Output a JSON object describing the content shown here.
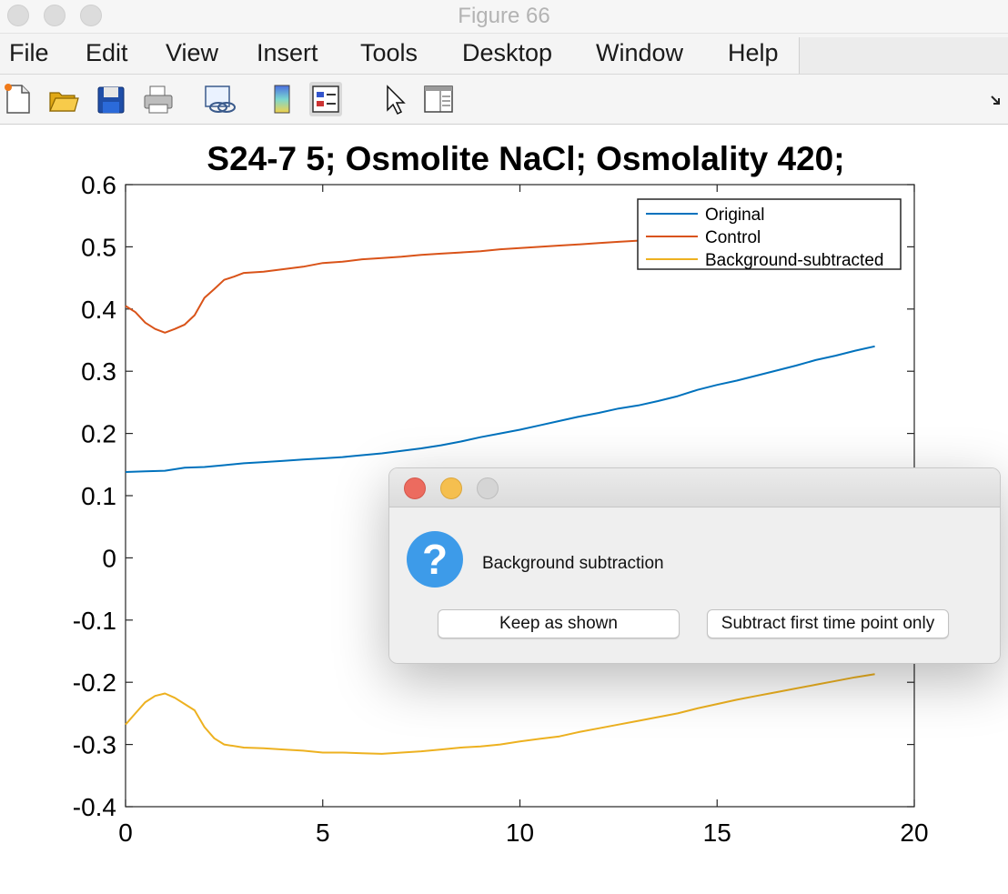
{
  "window": {
    "title": "Figure 66"
  },
  "menu": [
    "File",
    "Edit",
    "View",
    "Insert",
    "Tools",
    "Desktop",
    "Window",
    "Help"
  ],
  "toolbar": [
    "new-figure-icon",
    "open-folder-icon",
    "save-icon",
    "print-icon",
    "link-plot-icon",
    "colorbar-icon",
    "legend-icon",
    "pointer-icon",
    "property-editor-icon",
    "dock-arrow-icon"
  ],
  "chart_data": {
    "type": "line",
    "title": "S24-7 5; Osmolite NaCl; Osmolality 420;",
    "xlabel": "",
    "ylabel": "",
    "xlim": [
      0,
      20
    ],
    "ylim": [
      -0.4,
      0.6
    ],
    "xticks": [
      "0",
      "5",
      "10",
      "15",
      "20"
    ],
    "yticks": [
      "0.6",
      "0.5",
      "0.4",
      "0.3",
      "0.2",
      "0.1",
      "0",
      "-0.1",
      "-0.2",
      "-0.3",
      "-0.4"
    ],
    "legend_position": "top-right",
    "series": [
      {
        "name": "Original",
        "color": "#0072bd",
        "x": [
          0,
          0.5,
          1,
          1.5,
          2,
          2.5,
          3,
          3.5,
          4,
          4.5,
          5,
          5.5,
          6,
          6.5,
          7,
          7.5,
          8,
          8.5,
          9,
          9.5,
          10,
          10.5,
          11,
          11.5,
          12,
          12.5,
          13,
          13.5,
          14,
          14.5,
          15,
          15.5,
          16,
          16.5,
          17,
          17.5,
          18,
          18.5,
          19
        ],
        "y": [
          0.138,
          0.139,
          0.14,
          0.145,
          0.146,
          0.149,
          0.152,
          0.154,
          0.156,
          0.158,
          0.16,
          0.162,
          0.165,
          0.168,
          0.172,
          0.176,
          0.181,
          0.187,
          0.194,
          0.2,
          0.206,
          0.213,
          0.22,
          0.227,
          0.233,
          0.24,
          0.245,
          0.252,
          0.26,
          0.27,
          0.278,
          0.285,
          0.293,
          0.301,
          0.309,
          0.318,
          0.325,
          0.333,
          0.34
        ]
      },
      {
        "name": "Control",
        "color": "#d95319",
        "x": [
          0,
          0.25,
          0.5,
          0.75,
          1,
          1.25,
          1.5,
          1.75,
          2,
          2.25,
          2.5,
          2.75,
          3,
          3.5,
          4,
          4.5,
          5,
          5.5,
          6,
          6.5,
          7,
          7.5,
          8,
          8.5,
          9,
          9.5,
          10,
          10.5,
          11,
          11.5,
          12,
          12.5,
          13
        ],
        "y": [
          0.405,
          0.395,
          0.378,
          0.368,
          0.362,
          0.368,
          0.375,
          0.39,
          0.418,
          0.432,
          0.447,
          0.452,
          0.458,
          0.46,
          0.464,
          0.468,
          0.474,
          0.476,
          0.48,
          0.482,
          0.484,
          0.487,
          0.489,
          0.491,
          0.493,
          0.496,
          0.498,
          0.5,
          0.502,
          0.504,
          0.506,
          0.508,
          0.51
        ]
      },
      {
        "name": "Background-subtracted",
        "color": "#edb120",
        "x": [
          0,
          0.25,
          0.5,
          0.75,
          1,
          1.25,
          1.5,
          1.75,
          2,
          2.25,
          2.5,
          3,
          3.5,
          4,
          4.5,
          5,
          5.5,
          6,
          6.5,
          7,
          7.5,
          8,
          8.5,
          9,
          9.5,
          10,
          10.5,
          11,
          11.5,
          12,
          12.5,
          13,
          13.5,
          14,
          14.5,
          15,
          15.5,
          16,
          16.5,
          17,
          17.5,
          18,
          18.5,
          19
        ],
        "y": [
          -0.268,
          -0.25,
          -0.232,
          -0.222,
          -0.218,
          -0.225,
          -0.235,
          -0.245,
          -0.272,
          -0.29,
          -0.3,
          -0.305,
          -0.306,
          -0.308,
          -0.31,
          -0.313,
          -0.313,
          -0.314,
          -0.315,
          -0.313,
          -0.311,
          -0.308,
          -0.305,
          -0.303,
          -0.3,
          -0.295,
          -0.291,
          -0.287,
          -0.28,
          -0.274,
          -0.268,
          -0.262,
          -0.256,
          -0.25,
          -0.242,
          -0.235,
          -0.228,
          -0.222,
          -0.216,
          -0.21,
          -0.204,
          -0.198,
          -0.192,
          -0.187
        ]
      }
    ]
  },
  "dialog": {
    "message": "Background subtraction",
    "icon": "question-icon",
    "buttons": {
      "keep": "Keep as shown",
      "subtract": "Subtract first time point only"
    }
  }
}
